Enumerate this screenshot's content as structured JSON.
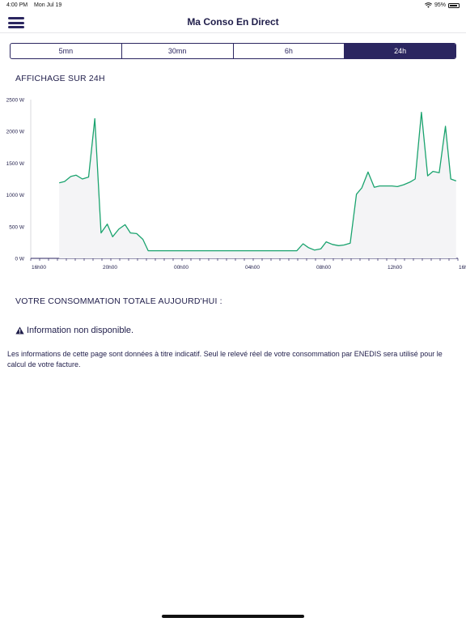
{
  "status_bar": {
    "time": "4:00 PM",
    "date": "Mon Jul 19",
    "battery": "95%"
  },
  "header": {
    "title": "Ma Conso En Direct",
    "menu_icon": "hamburger-menu-icon"
  },
  "segments": [
    {
      "label": "5mn",
      "active": false
    },
    {
      "label": "30mn",
      "active": false
    },
    {
      "label": "6h",
      "active": false
    },
    {
      "label": "24h",
      "active": true
    }
  ],
  "section_title": "AFFICHAGE SUR 24H",
  "chart_data": {
    "type": "area",
    "title": "",
    "xlabel": "",
    "ylabel": "",
    "x_unit": "hours since 16h00",
    "y_ticks": [
      "2500 W",
      "2000 W",
      "1500 W",
      "1000 W",
      "500 W",
      "0 W"
    ],
    "y_tick_values": [
      2500,
      2000,
      1500,
      1000,
      500,
      0
    ],
    "ylim": [
      0,
      2500
    ],
    "x_ticks": [
      "16h00",
      "20h00",
      "00h00",
      "04h00",
      "08h00",
      "12h00",
      "16h00"
    ],
    "x_tick_values": [
      0,
      4,
      8,
      12,
      16,
      20,
      24
    ],
    "xlim": [
      0,
      24
    ],
    "line_color": "#1aa36e",
    "fill_color": "#f4f4f6",
    "x": [
      1.6,
      1.9,
      2.25,
      2.55,
      2.9,
      3.25,
      3.6,
      3.95,
      4.3,
      4.6,
      4.95,
      5.3,
      5.6,
      5.95,
      6.3,
      6.6,
      6.95,
      7.3,
      7.6,
      7.95,
      8.3,
      8.6,
      8.95,
      9.3,
      9.6,
      9.95,
      10.3,
      10.6,
      10.95,
      11.3,
      11.6,
      11.95,
      12.3,
      12.6,
      12.95,
      13.3,
      13.6,
      13.95,
      14.3,
      14.6,
      14.95,
      15.3,
      15.6,
      15.95,
      16.3,
      16.6,
      16.95,
      17.3,
      17.6,
      17.95,
      18.3,
      18.6,
      18.95,
      19.3,
      19.6,
      19.95,
      20.3,
      20.6,
      20.95,
      21.3,
      21.6,
      21.95,
      22.3,
      22.6,
      22.95,
      23.3,
      23.6,
      23.9
    ],
    "y": [
      1190,
      1210,
      1290,
      1310,
      1250,
      1280,
      2200,
      400,
      540,
      340,
      460,
      530,
      400,
      390,
      300,
      120,
      120,
      120,
      120,
      120,
      120,
      120,
      120,
      120,
      120,
      120,
      120,
      120,
      120,
      120,
      120,
      120,
      120,
      120,
      120,
      120,
      120,
      120,
      120,
      120,
      120,
      230,
      170,
      130,
      150,
      260,
      220,
      200,
      210,
      240,
      1010,
      1110,
      1360,
      1120,
      1140,
      1140,
      1140,
      1130,
      1160,
      1200,
      1250,
      2300,
      1300,
      1370,
      1350,
      2080,
      1250,
      1220
    ]
  },
  "total_title": "VOTRE CONSOMMATION TOTALE AUJOURD'HUI :",
  "info": {
    "icon": "warning-icon",
    "text": "Information non disponible."
  },
  "disclaimer": "Les informations de cette page sont données à titre indicatif. Seul le relevé réel de votre consommation par ENEDIS sera utilisé pour le calcul de votre facture."
}
